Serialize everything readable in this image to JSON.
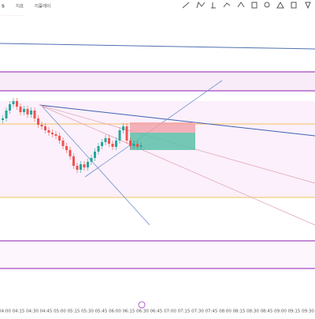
{
  "toolbar": {
    "interval": "5",
    "items": [
      "지표",
      "리플레이"
    ]
  },
  "time_axis": {
    "labels": [
      "04:00",
      "04:15",
      "04:30",
      "04:45",
      "05:00",
      "05:15",
      "05:30",
      "05:45",
      "06:00",
      "06:15",
      "06:30",
      "06:45",
      "07:00",
      "07:15",
      "07:30",
      "07:45",
      "08:00",
      "08:15",
      "08:30",
      "08:45",
      "09:00",
      "09:15",
      "09:30"
    ]
  }
}
